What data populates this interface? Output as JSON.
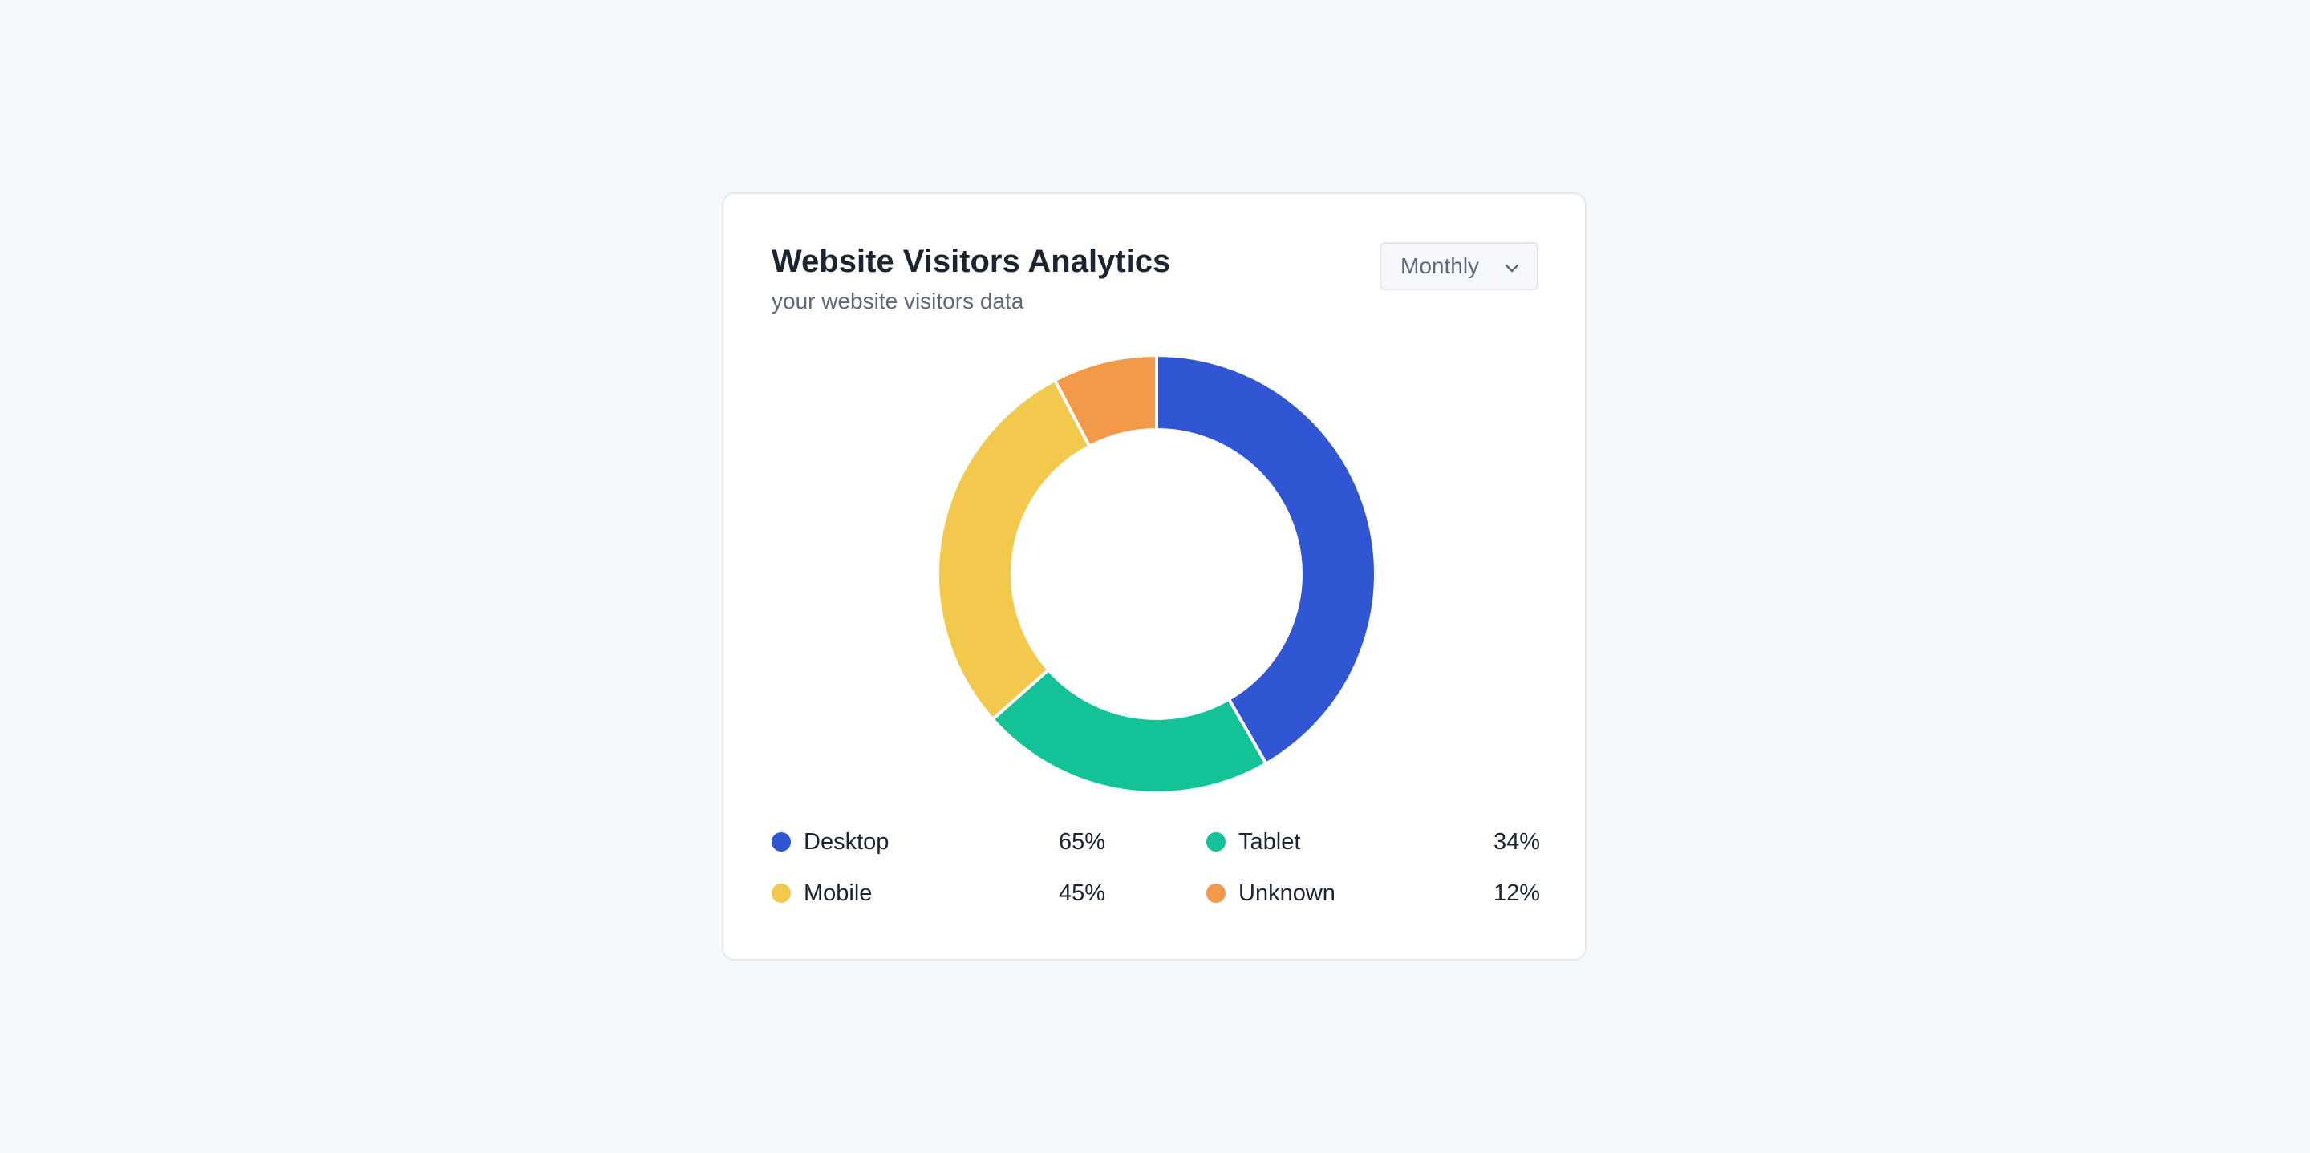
{
  "card": {
    "title": "Website Visitors Analytics",
    "subtitle": "your website visitors data"
  },
  "dropdown": {
    "selected": "Monthly",
    "icon": "chevron-down-icon"
  },
  "chart_data": {
    "type": "pie",
    "donut": true,
    "categories": [
      "Desktop",
      "Tablet",
      "Mobile",
      "Unknown"
    ],
    "values": [
      65,
      34,
      45,
      12
    ],
    "value_labels": [
      "65%",
      "34%",
      "45%",
      "12%"
    ],
    "colors": [
      "#3056d3",
      "#13c296",
      "#f2c94c",
      "#f2994a"
    ],
    "legend_position": "bottom"
  }
}
